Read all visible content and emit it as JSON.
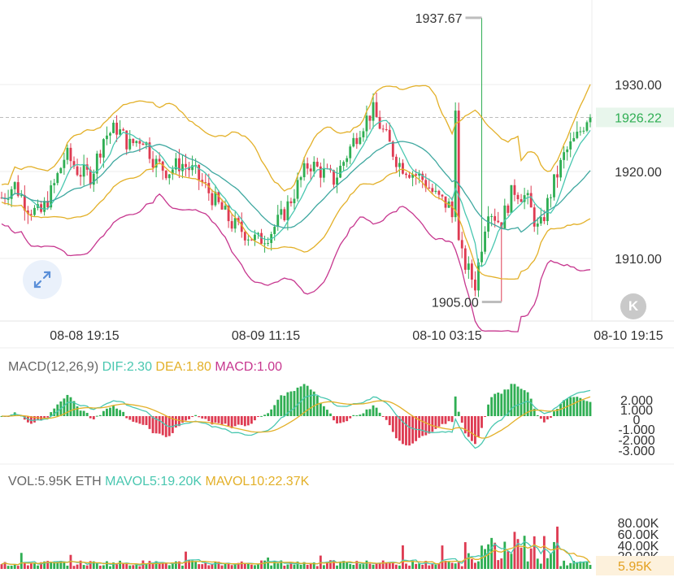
{
  "colors": {
    "up": "#2fae53",
    "down": "#de3b52",
    "ma_short": "#49c7b0",
    "ma_mid": "#3fa8a0",
    "boll": "#e3b028",
    "boll_low": "#c7378f",
    "grid": "#ececec",
    "text": "#333333",
    "last_price_bg": "#e8f6ec",
    "last_price_text": "#2fae53",
    "vol_badge_bg": "#fdf1dc",
    "vol_badge_text": "#e3a020"
  },
  "icons": {
    "expand": "expand-icon",
    "kline": "k-icon"
  },
  "price_panel": {
    "high_marker": "1937.67",
    "low_marker": "1905.00",
    "last_price": "1926.22",
    "y_ticks": [
      "1930.00",
      "1920.00",
      "1910.00"
    ],
    "x_ticks": [
      "08-08 19:15",
      "08-09 11:15",
      "08-10 03:15",
      "08-10 19:15"
    ]
  },
  "macd_panel": {
    "label": "MACD(12,26,9)",
    "dif": "DIF:2.30",
    "dea": "DEA:1.80",
    "macd": "MACD:1.00",
    "y_ticks": [
      "2.000",
      "1.000",
      "0",
      "-1.000",
      "-2.000",
      "-3.000"
    ]
  },
  "vol_panel": {
    "vol": "VOL:5.95K ETH",
    "mavol5": "MAVOL5:19.20K",
    "mavol10": "MAVOL10:22.37K",
    "y_ticks": [
      "80.00K",
      "60.00K",
      "40.00K",
      "20.00K"
    ],
    "last_vol": "5.95K"
  },
  "chart_data": {
    "type": "candlestick",
    "x_labels": [
      "08-08 19:15",
      "08-09 11:15",
      "08-10 03:15",
      "08-10 19:15"
    ],
    "price_range": [
      1903.5,
      1939
    ],
    "high": 1937.67,
    "low": 1905.0,
    "last": 1926.22,
    "close_path": [
      1917,
      1918.5,
      1916,
      1915,
      1918,
      1922,
      1920,
      1919.5,
      1924,
      1925,
      1923,
      1924,
      1921,
      1920,
      1921,
      1920,
      1918,
      1916,
      1914,
      1913,
      1912,
      1913,
      1915,
      1918,
      1921,
      1920,
      1919,
      1922,
      1925,
      1927,
      1924,
      1921,
      1920,
      1919,
      1917,
      1916,
      1910,
      1907,
      1916,
      1914,
      1918,
      1917,
      1913,
      1918,
      1922,
      1924,
      1927
    ],
    "macd": {
      "dif": 2.3,
      "dea": 1.8,
      "macd": 1.0,
      "range": [
        -3.4,
        2.2
      ]
    },
    "volume": {
      "last": 5950,
      "mavol5": 19200,
      "mavol10": 22370,
      "range": [
        0,
        90000
      ]
    }
  }
}
